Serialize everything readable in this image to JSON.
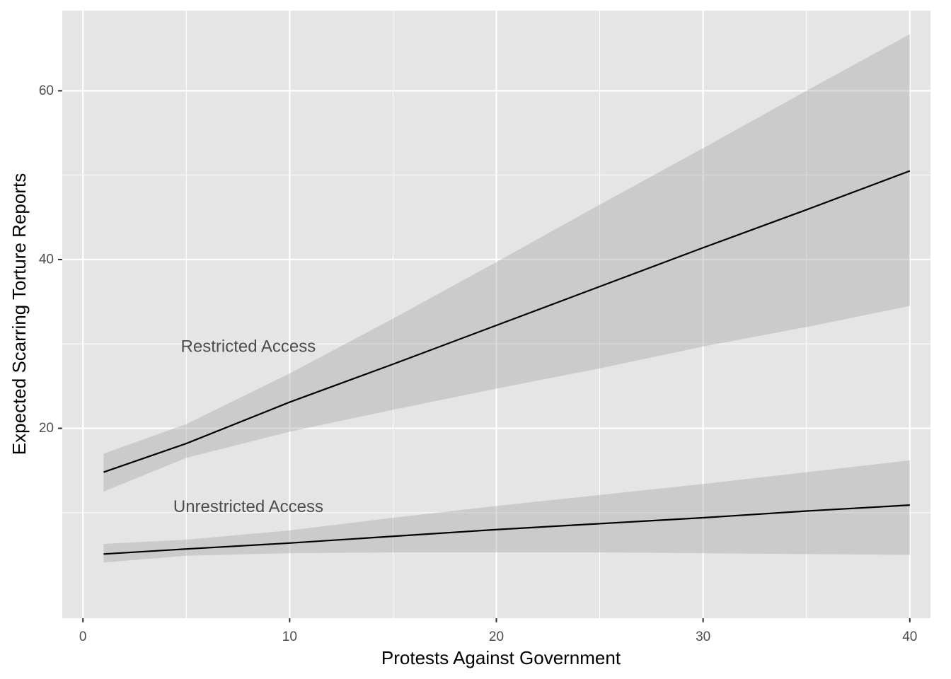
{
  "chart_data": {
    "type": "line",
    "title": "",
    "xlabel": "Protests Against Government",
    "ylabel": "Expected Scarring Torture Reports",
    "xlim": [
      -1,
      41
    ],
    "ylim": [
      -2.5,
      69.5
    ],
    "x_ticks": [
      0,
      10,
      20,
      30,
      40
    ],
    "y_ticks": [
      20,
      40,
      60
    ],
    "x_tick_labels": [
      "0",
      "10",
      "20",
      "30",
      "40"
    ],
    "y_tick_labels": [
      "20",
      "40",
      "60"
    ],
    "grid": true,
    "x": [
      1,
      5,
      10,
      15,
      20,
      25,
      30,
      35,
      40
    ],
    "series": [
      {
        "name": "Restricted Access",
        "values": [
          14.8,
          18.2,
          23.1,
          27.6,
          32.2,
          36.8,
          41.4,
          45.9,
          50.5
        ],
        "lower": [
          12.5,
          16.5,
          19.6,
          22.2,
          24.7,
          27.1,
          29.7,
          32.0,
          34.5
        ],
        "upper": [
          17.0,
          20.5,
          26.5,
          33.0,
          39.7,
          46.5,
          53.2,
          60.0,
          66.7
        ]
      },
      {
        "name": "Unrestricted Access",
        "values": [
          5.1,
          5.7,
          6.4,
          7.2,
          8.0,
          8.7,
          9.4,
          10.2,
          10.9
        ],
        "lower": [
          4.1,
          4.9,
          5.2,
          5.3,
          5.3,
          5.3,
          5.2,
          5.1,
          5.0
        ],
        "upper": [
          6.3,
          6.8,
          7.9,
          9.4,
          10.8,
          12.1,
          13.4,
          14.8,
          16.2
        ]
      }
    ],
    "annotations": [
      {
        "text": "Restricted Access",
        "x": 8,
        "y": 29.7
      },
      {
        "text": "Unrestricted Access",
        "x": 8,
        "y": 10.7
      }
    ],
    "colors": {
      "panel": "#e5e5e5",
      "grid": "#ffffff",
      "ribbon": "#a6a6a6",
      "line": "#000000"
    }
  }
}
